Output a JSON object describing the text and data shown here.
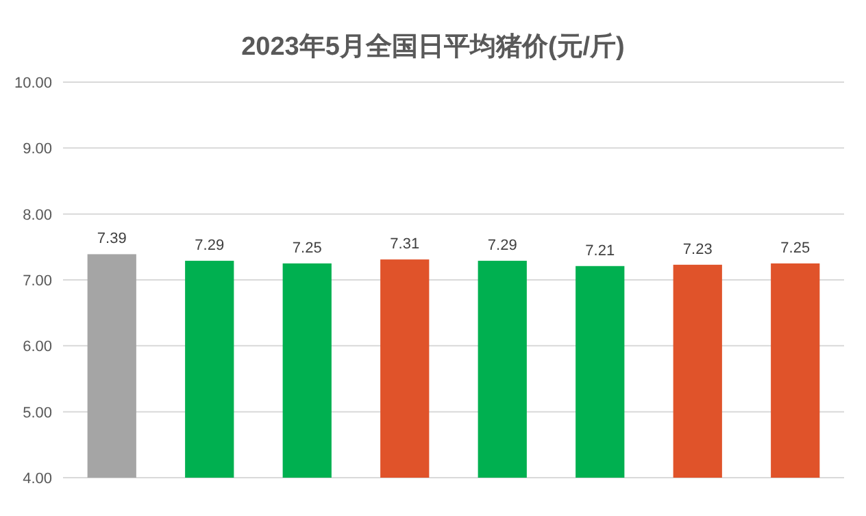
{
  "chart_data": {
    "type": "bar",
    "title": "2023年5月全国日平均猪价(元/斤)",
    "categories": [
      null,
      null,
      null,
      null,
      null,
      null,
      null,
      null
    ],
    "values": [
      7.39,
      7.29,
      7.25,
      7.31,
      7.29,
      7.21,
      7.23,
      7.25
    ],
    "colors": [
      "#a5a5a5",
      "#00b050",
      "#00b050",
      "#e0532a",
      "#00b050",
      "#00b050",
      "#e0532a",
      "#e0532a"
    ],
    "ylim": [
      4,
      10
    ],
    "yticks": [
      {
        "value": 4,
        "label": "4.00"
      },
      {
        "value": 5,
        "label": "5.00"
      },
      {
        "value": 6,
        "label": "6.00"
      },
      {
        "value": 7,
        "label": "7.00"
      },
      {
        "value": 8,
        "label": "8.00"
      },
      {
        "value": 9,
        "label": "9.00"
      },
      {
        "value": 10,
        "label": "10.00"
      }
    ],
    "grid": "y",
    "data_labels": true
  }
}
